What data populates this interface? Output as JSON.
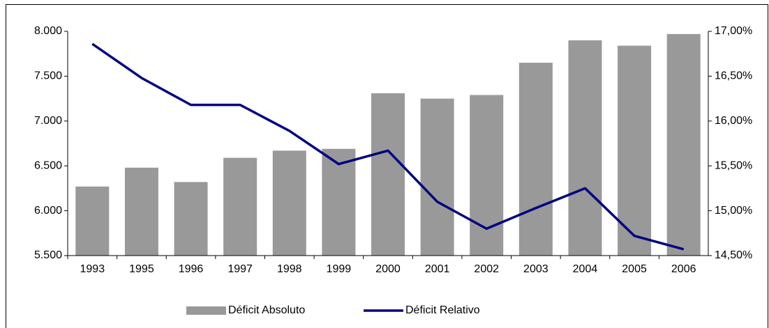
{
  "chart_data": {
    "type": "bar_line",
    "categories": [
      "1993",
      "1995",
      "1996",
      "1997",
      "1998",
      "1999",
      "2000",
      "2001",
      "2002",
      "2003",
      "2004",
      "2005",
      "2006"
    ],
    "series": [
      {
        "name": "Déficit Absoluto",
        "type": "bar",
        "color": "#999999",
        "values": [
          6270,
          6480,
          6320,
          6590,
          6670,
          6690,
          7310,
          7250,
          7290,
          7650,
          7900,
          7840,
          7970
        ]
      },
      {
        "name": "Déficit Relativo",
        "type": "line",
        "axis": "y2",
        "color": "#000080",
        "values": [
          16.86,
          16.48,
          16.18,
          16.18,
          15.89,
          15.52,
          15.67,
          15.1,
          14.8,
          15.03,
          15.25,
          14.72,
          14.57
        ]
      }
    ],
    "ylim": [
      5500,
      8000
    ],
    "yticks": [
      {
        "value": 5500,
        "label": "5.500"
      },
      {
        "value": 6000,
        "label": "6.000"
      },
      {
        "value": 6500,
        "label": "6.500"
      },
      {
        "value": 7000,
        "label": "7.000"
      },
      {
        "value": 7500,
        "label": "7.500"
      },
      {
        "value": 8000,
        "label": "8.000"
      }
    ],
    "y2lim": [
      14.5,
      17
    ],
    "y2ticks": [
      {
        "value": 14.5,
        "label": "14,50%"
      },
      {
        "value": 15,
        "label": "15,00%"
      },
      {
        "value": 15.5,
        "label": "15,50%"
      },
      {
        "value": 16,
        "label": "16,00%"
      },
      {
        "value": 16.5,
        "label": "16,50%"
      },
      {
        "value": 17,
        "label": "17,00%"
      }
    ],
    "legend": "bottom"
  }
}
